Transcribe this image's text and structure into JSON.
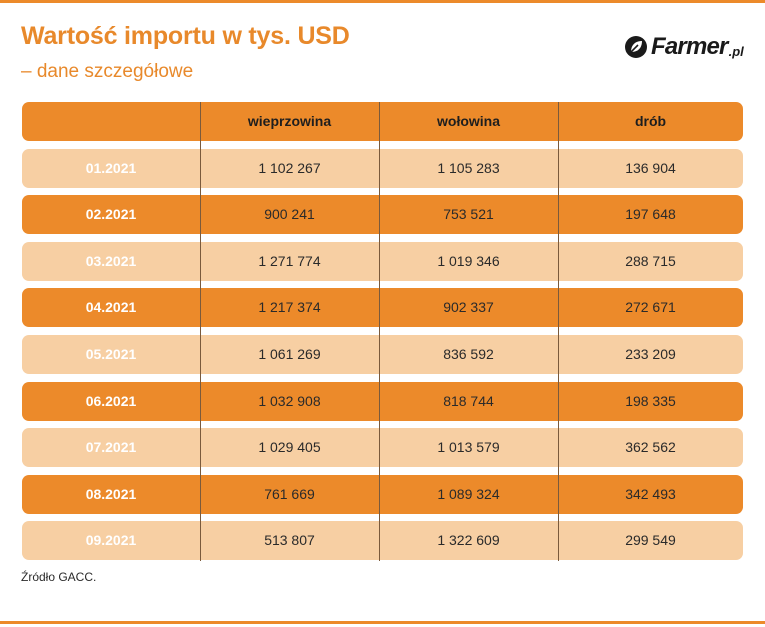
{
  "title": "Wartość importu w tys. USD",
  "subtitle": "– dane szczegółowe",
  "logo": {
    "text": "Farmer",
    "suffix": ".pl",
    "icon": "leaf-icon"
  },
  "source": "Źródło GACC.",
  "colors": {
    "accent": "#ec8a2a",
    "row_light": "#f7cfa3",
    "title": "#e8892b"
  },
  "chart_data": {
    "type": "table",
    "columns": [
      "",
      "wieprzowina",
      "wołowina",
      "drób"
    ],
    "rows": [
      [
        "01.2021",
        "1 102 267",
        "1 105 283",
        "136 904"
      ],
      [
        "02.2021",
        "900 241",
        "753 521",
        "197 648"
      ],
      [
        "03.2021",
        "1 271 774",
        "1 019 346",
        "288 715"
      ],
      [
        "04.2021",
        "1 217 374",
        "902 337",
        "272 671"
      ],
      [
        "05.2021",
        "1 061 269",
        "836 592",
        "233 209"
      ],
      [
        "06.2021",
        "1 032 908",
        "818 744",
        "198 335"
      ],
      [
        "07.2021",
        "1 029 405",
        "1 013 579",
        "362 562"
      ],
      [
        "08.2021",
        "761 669",
        "1 089 324",
        "342 493"
      ],
      [
        "09.2021",
        "513 807",
        "1 322 609",
        "299 549"
      ]
    ]
  }
}
